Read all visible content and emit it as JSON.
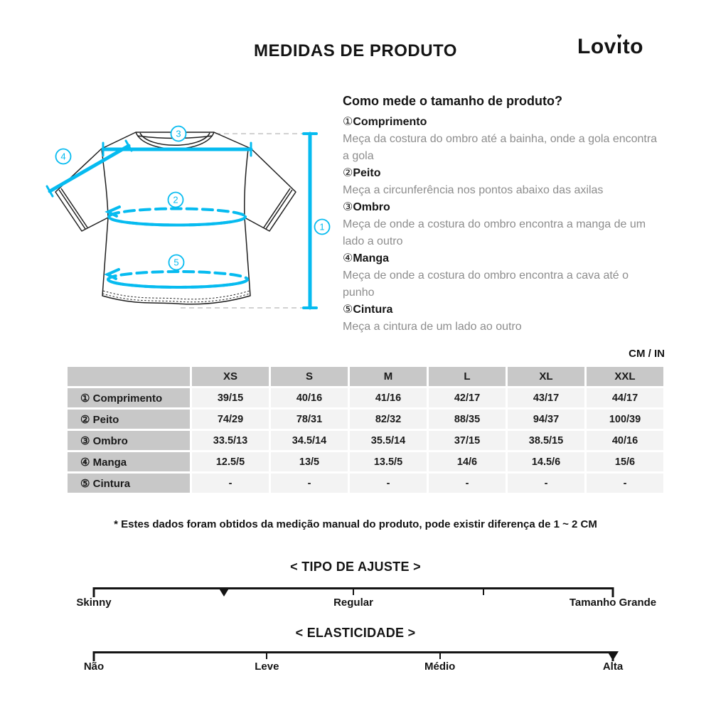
{
  "header": {
    "title": "MEDIDAS DE PRODUTO",
    "brand": "Lovito",
    "brand_pre": "Lov",
    "brand_i": "ı",
    "brand_heart": "♥",
    "brand_post": "to"
  },
  "howto": {
    "heading": "Como mede o tamanho de produto?",
    "items": [
      {
        "num": "①",
        "label": "Comprimento",
        "desc": "Meça da costura do ombro até a bainha, onde a gola encontra a gola"
      },
      {
        "num": "②",
        "label": "Peito",
        "desc": "Meça a circunferência nos pontos abaixo das axilas"
      },
      {
        "num": "③",
        "label": "Ombro",
        "desc": "Meça de onde a costura do ombro encontra a manga de um lado a outro"
      },
      {
        "num": "④",
        "label": "Manga",
        "desc": "Meça de onde a costura do ombro encontra a cava até o punho"
      },
      {
        "num": "⑤",
        "label": "Cintura",
        "desc": "Meça a cintura de um lado ao outro"
      }
    ]
  },
  "table": {
    "unit_label": "CM / IN",
    "columns": [
      "XS",
      "S",
      "M",
      "L",
      "XL",
      "XXL"
    ],
    "rows": [
      {
        "label": "① Comprimento",
        "values": [
          "39/15",
          "40/16",
          "41/16",
          "42/17",
          "43/17",
          "44/17"
        ]
      },
      {
        "label": "② Peito",
        "values": [
          "74/29",
          "78/31",
          "82/32",
          "88/35",
          "94/37",
          "100/39"
        ]
      },
      {
        "label": "③ Ombro",
        "values": [
          "33.5/13",
          "34.5/14",
          "35.5/14",
          "37/15",
          "38.5/15",
          "40/16"
        ]
      },
      {
        "label": "④ Manga",
        "values": [
          "12.5/5",
          "13/5",
          "13.5/5",
          "14/6",
          "14.5/6",
          "15/6"
        ]
      },
      {
        "label": "⑤ Cintura",
        "values": [
          "-",
          "-",
          "-",
          "-",
          "-",
          "-"
        ]
      }
    ],
    "footnote": "* Estes dados foram obtidos da medição manual do produto, pode existir diferença de 1 ~ 2 CM"
  },
  "fit_scale": {
    "heading": "< TIPO DE AJUSTE >",
    "labels": [
      "Skinny",
      "Regular",
      "Tamanho Grande"
    ],
    "marker_position_pct": 25,
    "tick_positions_pct": [
      50,
      75
    ]
  },
  "stretch_scale": {
    "heading": "< ELASTICIDADE >",
    "labels": [
      "Não",
      "Leve",
      "Médio",
      "Alta"
    ],
    "marker_position_pct": 100,
    "tick_positions_pct": [
      33.3,
      66.7
    ]
  },
  "diagram": {
    "annotations": [
      "1",
      "2",
      "3",
      "4",
      "5"
    ],
    "accent_color": "#06bbf0"
  }
}
